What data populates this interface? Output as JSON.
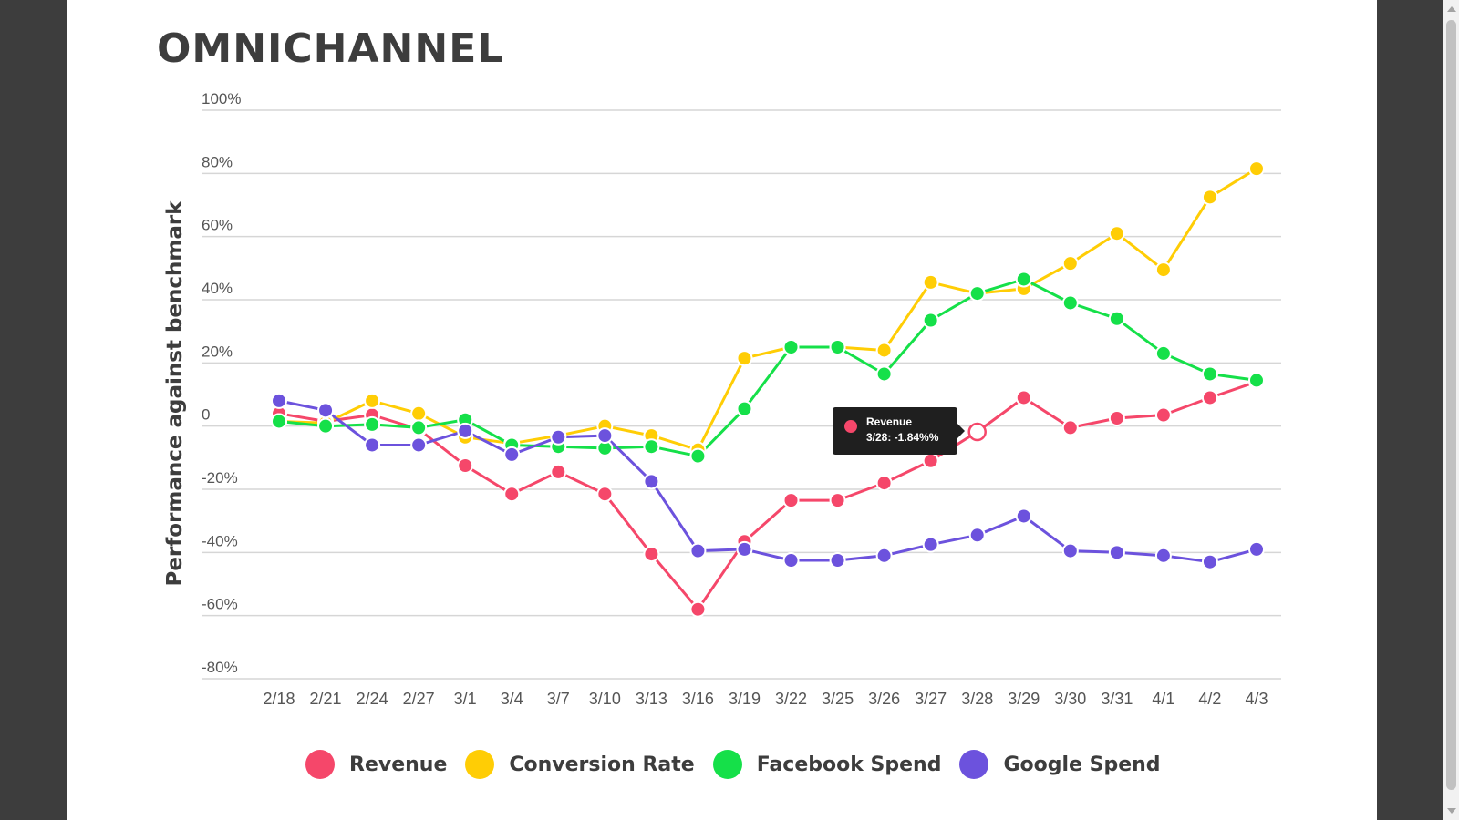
{
  "page": {
    "title": "OMNICHANNEL"
  },
  "chart_data": {
    "type": "line",
    "title": "OMNICHANNEL",
    "xlabel": "",
    "ylabel": "Performance against benchmark",
    "ylim": [
      -80,
      100
    ],
    "yticks": [
      100,
      80,
      60,
      40,
      20,
      0,
      -20,
      -40,
      -60,
      -80
    ],
    "ytick_labels": [
      "100%",
      "80%",
      "60%",
      "40%",
      "20%",
      "0",
      "-20%",
      "-40%",
      "-60%",
      "-80%"
    ],
    "categories": [
      "2/18",
      "2/21",
      "2/24",
      "2/27",
      "3/1",
      "3/4",
      "3/7",
      "3/10",
      "3/13",
      "3/16",
      "3/19",
      "3/22",
      "3/25",
      "3/26",
      "3/27",
      "3/28",
      "3/29",
      "3/30",
      "3/31",
      "4/1",
      "4/2",
      "4/3"
    ],
    "grid": true,
    "legend_position": "bottom",
    "series": [
      {
        "name": "Revenue",
        "color": "#f5476a",
        "values": [
          4,
          1.5,
          3.5,
          -1,
          -12.5,
          -21.5,
          -14.5,
          -21.5,
          -40.5,
          -58,
          -36.5,
          -23.5,
          -23.5,
          -18,
          -11,
          -1.84,
          9,
          -0.5,
          2.5,
          3.5,
          9,
          14
        ]
      },
      {
        "name": "Conversion Rate",
        "color": "#ffcd05",
        "values": [
          1.5,
          1,
          8,
          4,
          -3.5,
          -5.5,
          -3,
          0,
          -3,
          -7.5,
          21.5,
          25,
          25,
          24,
          45.5,
          42,
          43.5,
          51.5,
          61,
          49.5,
          72.5,
          81.5
        ]
      },
      {
        "name": "Facebook Spend",
        "color": "#15e049",
        "values": [
          1.5,
          0,
          0.5,
          -0.5,
          2,
          -6,
          -6.5,
          -7,
          -6.5,
          -9.5,
          5.5,
          25,
          25,
          16.5,
          33.5,
          42,
          46.5,
          39,
          34,
          23,
          16.5,
          14.5
        ]
      },
      {
        "name": "Google Spend",
        "color": "#6c52dd",
        "values": [
          8,
          5,
          -6,
          -6,
          -1.5,
          -9,
          -3.5,
          -3,
          -17.5,
          -39.5,
          -39,
          -42.5,
          -42.5,
          -41,
          -37.5,
          -34.5,
          -28.5,
          -39.5,
          -40,
          -41,
          -43,
          -39
        ]
      }
    ],
    "tooltip": {
      "series": "Revenue",
      "label": "Revenue",
      "text": "3/28: -1.84%%",
      "category_index": 15
    }
  }
}
